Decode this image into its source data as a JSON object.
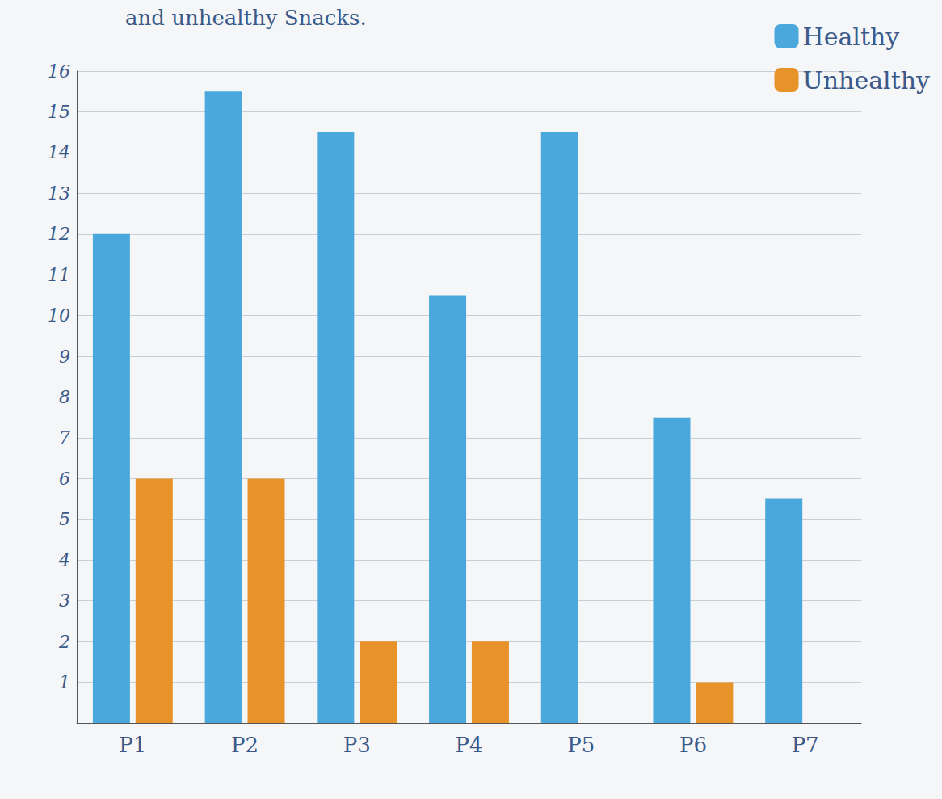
{
  "chart_data": {
    "type": "bar",
    "title": "and unhealthy Snacks.",
    "categories": [
      "P1",
      "P2",
      "P3",
      "P4",
      "P5",
      "P6",
      "P7"
    ],
    "series": [
      {
        "name": "Healthy",
        "color": "#4aa8dc",
        "values": [
          12,
          15.5,
          14.5,
          10.5,
          14.5,
          7.5,
          5.5
        ]
      },
      {
        "name": "Unhealthy",
        "color": "#e8922a",
        "values": [
          6,
          6,
          2,
          2,
          0,
          1,
          0
        ]
      }
    ],
    "ylim": [
      0,
      16
    ],
    "yticks": [
      1,
      2,
      3,
      4,
      5,
      6,
      7,
      8,
      9,
      10,
      11,
      12,
      13,
      14,
      15,
      16
    ],
    "grid": true,
    "legend": "upper right"
  }
}
